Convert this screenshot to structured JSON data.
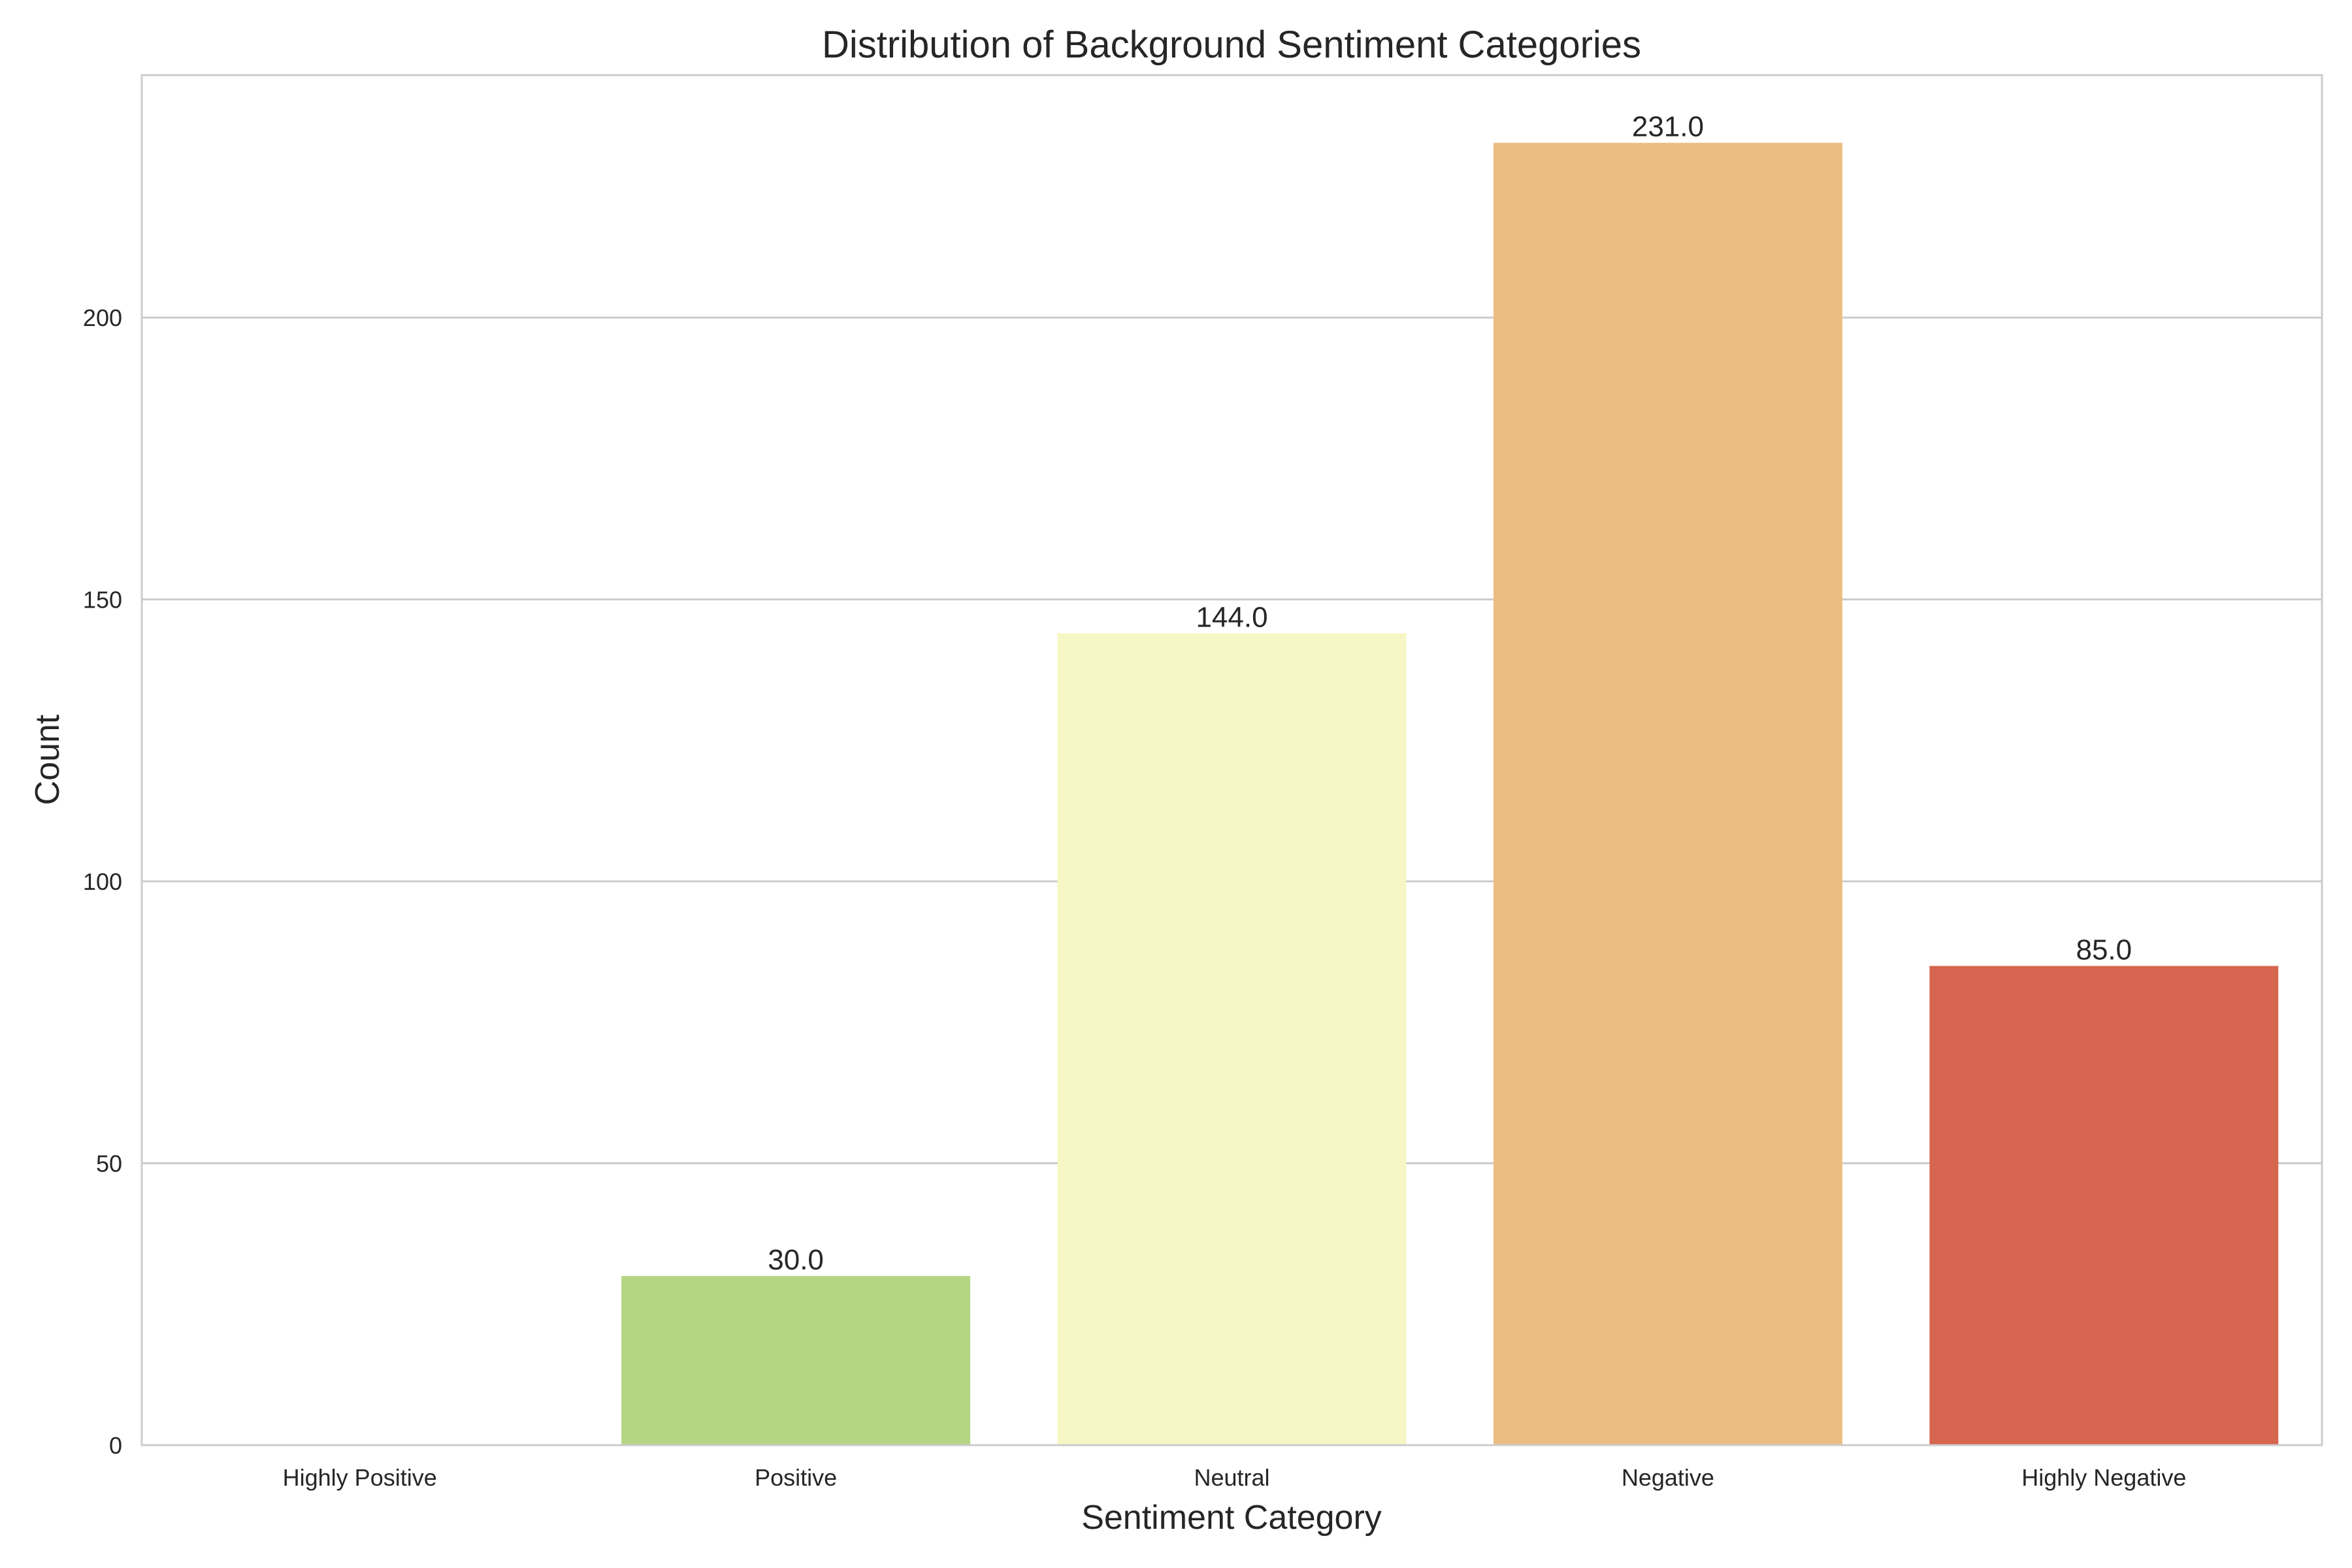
{
  "chart_data": {
    "type": "bar",
    "title": "Distribution of Background Sentiment Categories",
    "xlabel": "Sentiment Category",
    "ylabel": "Count",
    "categories": [
      "Highly Positive",
      "Positive",
      "Neutral",
      "Negative",
      "Highly Negative"
    ],
    "values": [
      0,
      30,
      144,
      231,
      85
    ],
    "data_labels": [
      "",
      "30.0",
      "144.0",
      "231.0",
      "85.0"
    ],
    "colors": [
      "#1a9850",
      "#b6d584",
      "#f7f7c5",
      "#ecbd82",
      "#d6664f"
    ],
    "ylim": [
      0,
      243
    ],
    "yticks": [
      0,
      50,
      100,
      150,
      200
    ],
    "ytick_labels": [
      "0",
      "50",
      "100",
      "150",
      "200"
    ],
    "grid": "horizontal",
    "legend": "none"
  }
}
